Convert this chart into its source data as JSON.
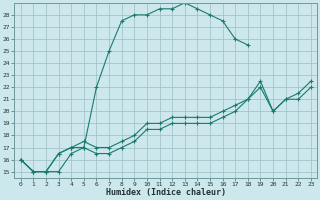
{
  "xlabel": "Humidex (Indice chaleur)",
  "xlim": [
    -0.5,
    23.5
  ],
  "ylim": [
    14.5,
    29.0
  ],
  "xticks": [
    0,
    1,
    2,
    3,
    4,
    5,
    6,
    7,
    8,
    9,
    10,
    11,
    12,
    13,
    14,
    15,
    16,
    17,
    18,
    19,
    20,
    21,
    22,
    23
  ],
  "yticks": [
    15,
    16,
    17,
    18,
    19,
    20,
    21,
    22,
    23,
    24,
    25,
    26,
    27,
    28
  ],
  "line_color": "#1a7a6e",
  "bg_color": "#cde8ec",
  "grid_color": "#9abfc4",
  "lines": [
    {
      "x": [
        0,
        1,
        2,
        3,
        4,
        5,
        6,
        7,
        8,
        9,
        10,
        11,
        12,
        13,
        14,
        15,
        16,
        17,
        18
      ],
      "y": [
        16,
        15,
        15,
        15,
        16.5,
        17,
        22,
        25,
        27.5,
        28.0,
        28.0,
        28.5,
        28.5,
        29.0,
        28.5,
        28.0,
        27.5,
        26.0,
        25.5
      ]
    },
    {
      "x": [
        0,
        1,
        2,
        3,
        4,
        5,
        6,
        7,
        8,
        9,
        10,
        11,
        12,
        13,
        14,
        15,
        16,
        17,
        18,
        19,
        20,
        21,
        22,
        23
      ],
      "y": [
        16,
        15,
        15,
        16.5,
        17,
        17.5,
        17,
        17,
        17.5,
        18,
        19,
        19,
        19.5,
        19.5,
        19.5,
        19.5,
        20,
        20.5,
        21,
        22.5,
        20,
        21,
        21.5,
        22.5
      ]
    },
    {
      "x": [
        0,
        1,
        2,
        3,
        4,
        5,
        6,
        7,
        8,
        9,
        10,
        11,
        12,
        13,
        14,
        15,
        16,
        17,
        18,
        19,
        20,
        21,
        22,
        23
      ],
      "y": [
        16,
        15,
        15,
        16.5,
        17,
        17.0,
        16.5,
        16.5,
        17,
        17.5,
        18.5,
        18.5,
        19,
        19,
        19,
        19,
        19.5,
        20,
        21,
        22.0,
        20,
        21,
        21,
        22
      ]
    }
  ]
}
